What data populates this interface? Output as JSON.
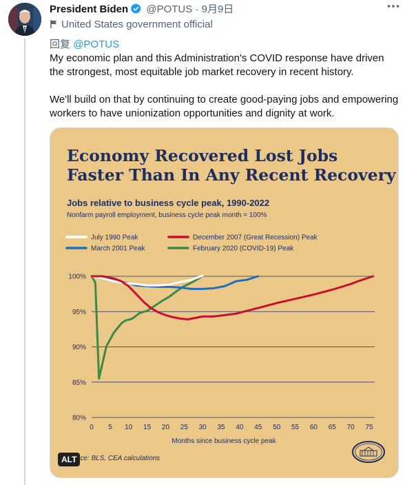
{
  "tweet": {
    "author_name": "President Biden",
    "handle": "@POTUS",
    "date": "· 9月9日",
    "affiliation": "United States government official",
    "reply_prefix": "回复",
    "reply_mention": "@POTUS",
    "paragraphs": [
      "My economic plan and this Administration's COVID response have driven the strongest, most equitable job market recovery in recent history.",
      "We'll build on that by continuing to create good-paying jobs and empowering workers to have unionization opportunities and dignity at work."
    ],
    "alt_label": "ALT"
  },
  "icons": {
    "verified": "verified-badge-icon",
    "affiliation": "flag-icon",
    "more": "more-dots-icon",
    "seal": "white-house-seal-icon"
  },
  "colors": {
    "chart_background": "#ecc888",
    "title_navy": "#1d2f62",
    "july_1990": "#ffffff",
    "march_2001": "#1f6fbf",
    "december_2007": "#c8102e",
    "february_2020": "#3a8b4a"
  },
  "chart_data": {
    "type": "line",
    "title_line1": "Economy Recovered Lost Jobs",
    "title_line2": "Faster Than In Any Recent Recovery",
    "subtitle": "Jobs relative to business cycle peak, 1990-2022",
    "subtitle2": "Nonfarm payroll employment, business cycle peak month = 100%",
    "xlabel": "Months since business cycle peak",
    "source": "rce: BLS, CEA calculations",
    "xlim": [
      0,
      75
    ],
    "ylim": [
      80,
      100
    ],
    "x_ticks": [
      "0",
      "5",
      "10",
      "15",
      "20",
      "25",
      "30",
      "35",
      "40",
      "45",
      "50",
      "55",
      "60",
      "65",
      "70",
      "75"
    ],
    "y_ticks": [
      "100%",
      "95%",
      "90%",
      "85%",
      "80%"
    ],
    "grid": true,
    "legend_position": "top",
    "series": [
      {
        "name": "July 1990 Peak",
        "color_key": "july_1990",
        "points": [
          [
            0,
            100
          ],
          [
            3,
            99.7
          ],
          [
            6,
            99.3
          ],
          [
            9,
            99
          ],
          [
            12,
            98.9
          ],
          [
            15,
            98.7
          ],
          [
            18,
            98.7
          ],
          [
            21,
            98.8
          ],
          [
            24,
            99.2
          ],
          [
            27,
            99.5
          ],
          [
            30,
            100.1
          ]
        ]
      },
      {
        "name": "March 2001 Peak",
        "color_key": "march_2001",
        "points": [
          [
            0,
            100
          ],
          [
            3,
            99.8
          ],
          [
            6,
            99.5
          ],
          [
            9,
            99.1
          ],
          [
            12,
            98.7
          ],
          [
            15,
            98.6
          ],
          [
            18,
            98.5
          ],
          [
            21,
            98.5
          ],
          [
            24,
            98.4
          ],
          [
            27,
            98.2
          ],
          [
            30,
            98.2
          ],
          [
            33,
            98.3
          ],
          [
            36,
            98.6
          ],
          [
            39,
            99.3
          ],
          [
            42,
            99.5
          ],
          [
            45,
            100
          ]
        ]
      },
      {
        "name": "December 2007 (Great Recession) Peak",
        "color_key": "december_2007",
        "points": [
          [
            0,
            100
          ],
          [
            3,
            100
          ],
          [
            6,
            99.7
          ],
          [
            8,
            99.3
          ],
          [
            10,
            98.6
          ],
          [
            12,
            97.5
          ],
          [
            14,
            96.4
          ],
          [
            16,
            95.5
          ],
          [
            18,
            94.9
          ],
          [
            20,
            94.5
          ],
          [
            22,
            94.2
          ],
          [
            24,
            94
          ],
          [
            26,
            93.9
          ],
          [
            28,
            94.1
          ],
          [
            30,
            94.3
          ],
          [
            33,
            94.3
          ],
          [
            36,
            94.5
          ],
          [
            39,
            94.7
          ],
          [
            42,
            95.1
          ],
          [
            45,
            95.5
          ],
          [
            50,
            96.2
          ],
          [
            55,
            96.8
          ],
          [
            60,
            97.4
          ],
          [
            65,
            98.1
          ],
          [
            70,
            98.9
          ],
          [
            72,
            99.3
          ],
          [
            76,
            100
          ]
        ]
      },
      {
        "name": "February 2020 (COVID-19) Peak",
        "color_key": "february_2020",
        "points": [
          [
            0,
            100
          ],
          [
            1,
            99.1
          ],
          [
            2,
            85.5
          ],
          [
            3,
            87.8
          ],
          [
            4,
            90.1
          ],
          [
            6,
            92
          ],
          [
            8,
            93.3
          ],
          [
            9,
            93.7
          ],
          [
            11,
            94
          ],
          [
            12,
            94.4
          ],
          [
            13,
            94.8
          ],
          [
            15,
            95.1
          ],
          [
            17,
            95.8
          ],
          [
            19,
            96.5
          ],
          [
            21,
            97.1
          ],
          [
            23,
            97.9
          ],
          [
            25,
            98.6
          ],
          [
            27,
            99.1
          ],
          [
            29,
            99.7
          ],
          [
            30,
            100.1
          ]
        ]
      }
    ]
  }
}
